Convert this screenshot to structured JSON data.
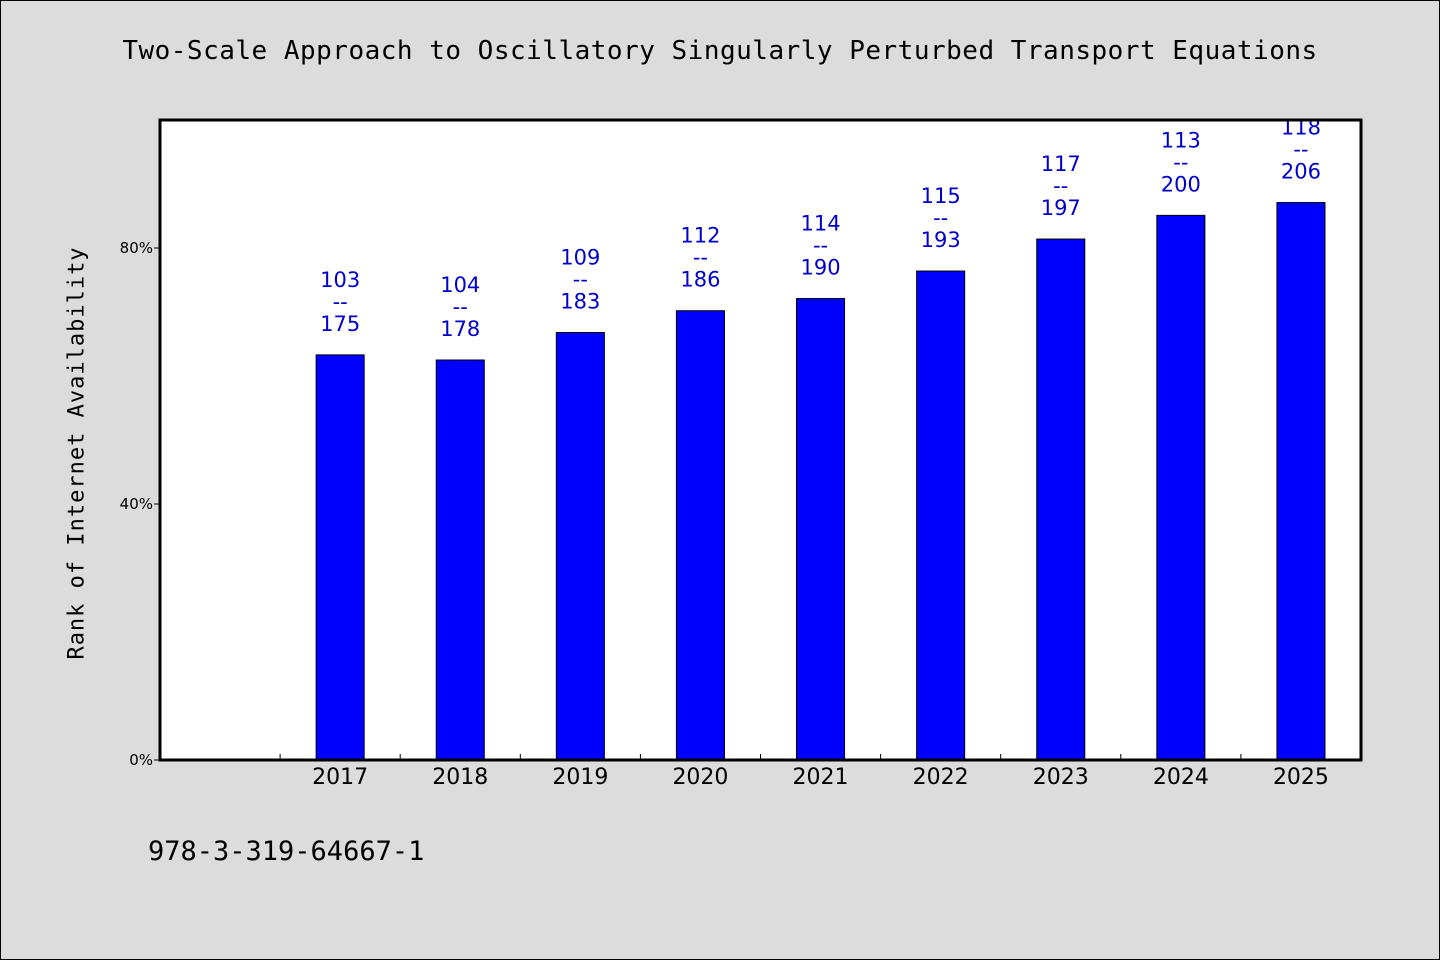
{
  "chart_data": {
    "type": "bar",
    "title": "Two-Scale Approach to Oscillatory Singularly Perturbed Transport Equations",
    "xlabel": "",
    "ylabel": "Rank of Internet Availability",
    "categories": [
      "2017",
      "2018",
      "2019",
      "2020",
      "2021",
      "2022",
      "2023",
      "2024",
      "2025"
    ],
    "series": [
      {
        "values": [
          63.3,
          62.5,
          66.8,
          70.2,
          72.1,
          76.4,
          81.4,
          85.1,
          87.1
        ],
        "labels": [
          [
            "103",
            "--",
            "175"
          ],
          [
            "104",
            "--",
            "178"
          ],
          [
            "109",
            "--",
            "183"
          ],
          [
            "112",
            "--",
            "186"
          ],
          [
            "114",
            "--",
            "190"
          ],
          [
            "115",
            "--",
            "193"
          ],
          [
            "117",
            "--",
            "197"
          ],
          [
            "113",
            "--",
            "200"
          ],
          [
            "118",
            "--",
            "206"
          ]
        ]
      }
    ],
    "yticks": [
      0,
      40,
      80
    ],
    "ytick_labels": [
      "0%",
      "40%",
      "80%"
    ],
    "ylim": [
      0,
      100
    ],
    "empty_slots_before": 1,
    "grid": false,
    "legend": "none",
    "colors": {
      "bar": "#0000ff",
      "bar_label": "#0000cc",
      "plot_background": "#ffffff",
      "page_background": "#dcdcdc"
    }
  },
  "footer": {
    "code": "978-3-319-64667-1"
  }
}
